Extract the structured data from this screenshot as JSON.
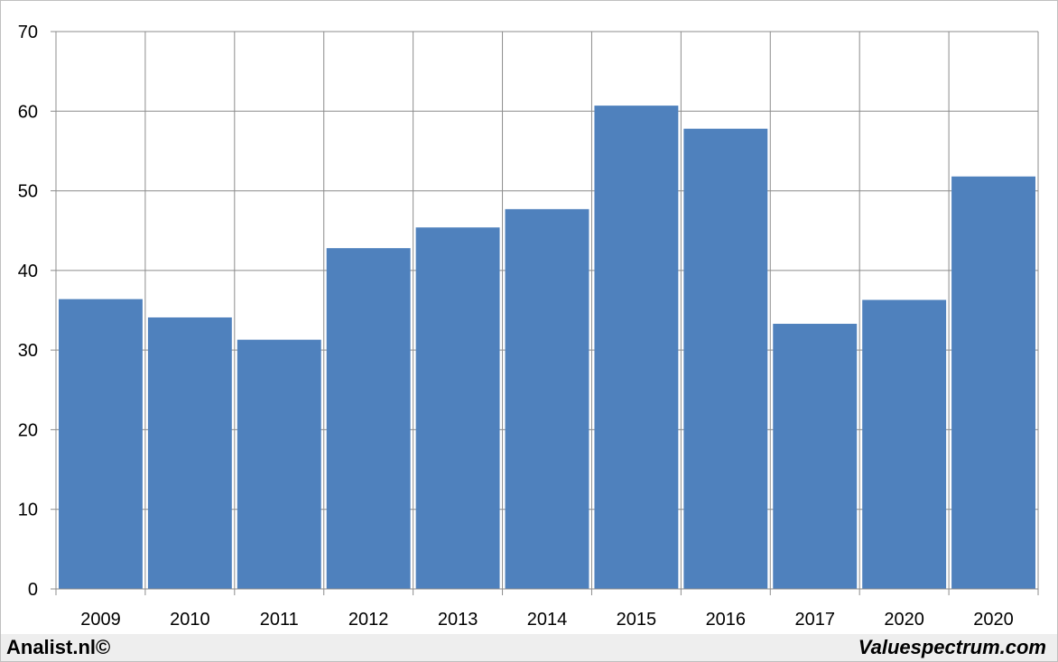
{
  "chart_data": {
    "type": "bar",
    "categories": [
      "2009",
      "2010",
      "2011",
      "2012",
      "2013",
      "2014",
      "2015",
      "2016",
      "2017",
      "2020",
      "2020"
    ],
    "values": [
      36.4,
      34.1,
      31.3,
      42.8,
      45.4,
      47.7,
      60.7,
      57.8,
      33.3,
      36.3,
      51.8
    ],
    "ylim": [
      0,
      70
    ],
    "yticks": [
      0,
      10,
      20,
      30,
      40,
      50,
      60,
      70
    ],
    "grid": true,
    "bar_color": "#4f81bd",
    "grid_color": "#8c8c8c"
  },
  "footer": {
    "left_brand": "Analist.nl©",
    "right_brand": "Valuespectrum.com"
  }
}
